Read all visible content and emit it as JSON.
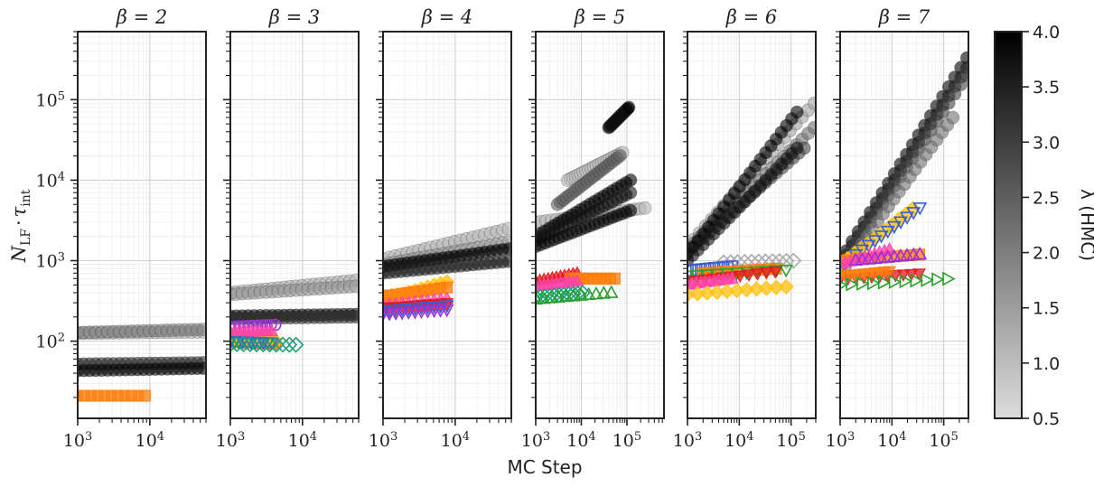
{
  "chart_data": {
    "type": "scatter",
    "layout": "six log-log panels sharing a y-axis, one shared colorbar on the right",
    "xlabel": "MC Step",
    "ylabel_parts": {
      "base": "N",
      "base_sub": "LF",
      "op": "·",
      "tau": "τ",
      "tau_sub": "int"
    },
    "colorbar": {
      "label": "λ (HMC)",
      "range": [
        0.5,
        4.0
      ],
      "ticks": [
        "0.5",
        "1.0",
        "1.5",
        "2.0",
        "2.5",
        "3.0",
        "3.5",
        "4.0"
      ],
      "colors": [
        "#dcdcdc",
        "#000000"
      ]
    },
    "y_axis": {
      "scale": "log",
      "range": [
        11,
        700000
      ],
      "ticks": [
        {
          "exp": 2,
          "base": "10",
          "label": "2"
        },
        {
          "exp": 3,
          "base": "10",
          "label": "3"
        },
        {
          "exp": 4,
          "base": "10",
          "label": "4"
        },
        {
          "exp": 5,
          "base": "10",
          "label": "5"
        }
      ]
    },
    "grid": true,
    "panels": [
      {
        "title": "β = 2",
        "xlim": [
          1000,
          60000
        ],
        "xticks": [
          {
            "exp": 3,
            "label": "3"
          },
          {
            "exp": 4,
            "label": "4"
          }
        ],
        "hmc": [
          {
            "lam": 1.2,
            "x": [
              1000,
              55000
            ],
            "y": [
              125,
              130
            ]
          },
          {
            "lam": 1.9,
            "x": [
              1000,
              55000
            ],
            "y": [
              128,
              140
            ]
          },
          {
            "lam": 3.3,
            "x": [
              1000,
              55000
            ],
            "y": [
              52,
              54
            ]
          },
          {
            "lam": 3.9,
            "x": [
              1000,
              55000
            ],
            "y": [
              43,
              46
            ]
          }
        ],
        "other": [
          {
            "color": "#ff7f0e",
            "marker": "square",
            "filled": true,
            "x": [
              1000,
              9500
            ],
            "y": [
              21,
              21
            ]
          }
        ]
      },
      {
        "title": "β = 3",
        "xlim": [
          1000,
          60000
        ],
        "xticks": [
          {
            "exp": 3,
            "label": "3"
          },
          {
            "exp": 4,
            "label": "4"
          }
        ],
        "hmc": [
          {
            "lam": 1.2,
            "x": [
              1000,
              55000
            ],
            "y": [
              400,
              570
            ]
          },
          {
            "lam": 1.5,
            "x": [
              1000,
              55000
            ],
            "y": [
              380,
              480
            ]
          },
          {
            "lam": 3.9,
            "x": [
              1000,
              55000
            ],
            "y": [
              205,
              215
            ]
          },
          {
            "lam": 3.2,
            "x": [
              1000,
              55000
            ],
            "y": [
              190,
              200
            ]
          }
        ],
        "other": [
          {
            "color": "#9b30d9",
            "marker": "circle",
            "filled": false,
            "x": [
              1000,
              4500
            ],
            "y": [
              150,
              160
            ]
          },
          {
            "color": "#ff7f0e",
            "marker": "square",
            "filled": true,
            "x": [
              1000,
              4500
            ],
            "y": [
              98,
              92
            ]
          },
          {
            "color": "#ffc20e",
            "marker": "diamond",
            "filled": true,
            "x": [
              1000,
              4000
            ],
            "y": [
              110,
              112
            ]
          },
          {
            "color": "#ff44aa",
            "marker": "triangle",
            "filled": true,
            "x": [
              1000,
              4000
            ],
            "y": [
              130,
              132
            ]
          },
          {
            "color": "#3a5fcd",
            "marker": "triangle-down",
            "filled": false,
            "x": [
              1000,
              4000
            ],
            "y": [
              100,
              96
            ]
          },
          {
            "color": "#1a9f7a",
            "marker": "diamond",
            "filled": false,
            "x": [
              1000,
              9000
            ],
            "y": [
              92,
              90
            ]
          }
        ]
      },
      {
        "title": "β = 4",
        "xlim": [
          1000,
          60000
        ],
        "xticks": [
          {
            "exp": 3,
            "label": "3"
          },
          {
            "exp": 4,
            "label": "4"
          }
        ],
        "hmc": [
          {
            "lam": 1.1,
            "x": [
              1000,
              55000
            ],
            "y": [
              1050,
              2500
            ]
          },
          {
            "lam": 1.6,
            "x": [
              1000,
              55000
            ],
            "y": [
              900,
              1700
            ]
          },
          {
            "lam": 4.0,
            "x": [
              1000,
              55000
            ],
            "y": [
              850,
              1400
            ]
          },
          {
            "lam": 3.6,
            "x": [
              1000,
              55000
            ],
            "y": [
              700,
              980
            ]
          }
        ],
        "other": [
          {
            "color": "#ffc20e",
            "marker": "diamond",
            "filled": true,
            "x": [
              1000,
              8500
            ],
            "y": [
              330,
              560
            ]
          },
          {
            "color": "#ff7f0e",
            "marker": "square",
            "filled": true,
            "x": [
              1000,
              8500
            ],
            "y": [
              360,
              470
            ]
          },
          {
            "color": "#ff44aa",
            "marker": "triangle",
            "filled": true,
            "x": [
              1000,
              8500
            ],
            "y": [
              280,
              340
            ]
          },
          {
            "color": "#e31a1c",
            "marker": "triangle-down",
            "filled": true,
            "x": [
              1000,
              8500
            ],
            "y": [
              260,
              300
            ]
          },
          {
            "color": "#3a5fcd",
            "marker": "triangle-down",
            "filled": false,
            "x": [
              1000,
              8500
            ],
            "y": [
              240,
              280
            ]
          },
          {
            "color": "#9b30d9",
            "marker": "triangle-down",
            "filled": false,
            "x": [
              1000,
              8500
            ],
            "y": [
              220,
              250
            ]
          }
        ]
      },
      {
        "title": "β = 5",
        "xlim": [
          1000,
          650000
        ],
        "xticks": [
          {
            "exp": 3,
            "label": "3"
          },
          {
            "exp": 4,
            "label": "4"
          },
          {
            "exp": 5,
            "label": "5"
          }
        ],
        "hmc": [
          {
            "lam": 1.1,
            "x": [
              1000,
              250000
            ],
            "y": [
              3000,
              4500
            ]
          },
          {
            "lam": 1.0,
            "x": [
              5000,
              80000
            ],
            "y": [
              10000,
              22000
            ]
          },
          {
            "lam": 2.5,
            "x": [
              3000,
              70000
            ],
            "y": [
              5000,
              20000
            ]
          },
          {
            "lam": 3.9,
            "x": [
              40000,
              110000
            ],
            "y": [
              45000,
              80000
            ]
          },
          {
            "lam": 4.0,
            "x": [
              1000,
              120000
            ],
            "y": [
              2000,
              10000
            ]
          },
          {
            "lam": 3.7,
            "x": [
              1000,
              120000
            ],
            "y": [
              1800,
              7000
            ]
          },
          {
            "lam": 3.9,
            "x": [
              1000,
              120000
            ],
            "y": [
              1500,
              4200
            ]
          }
        ],
        "other": [
          {
            "color": "#e31a1c",
            "marker": "triangle",
            "filled": true,
            "x": [
              1000,
              9000
            ],
            "y": [
              550,
              700
            ]
          },
          {
            "color": "#ff7f0e",
            "marker": "square",
            "filled": true,
            "x": [
              6000,
              60000
            ],
            "y": [
              600,
              600
            ]
          },
          {
            "color": "#ff44aa",
            "marker": "triangle",
            "filled": true,
            "x": [
              1000,
              9000
            ],
            "y": [
              480,
              560
            ]
          },
          {
            "color": "#1a9f7a",
            "marker": "diamond",
            "filled": false,
            "x": [
              1000,
              12000
            ],
            "y": [
              350,
              400
            ]
          },
          {
            "color": "#2ca02c",
            "marker": "triangle",
            "filled": false,
            "x": [
              1000,
              55000
            ],
            "y": [
              330,
              400
            ]
          }
        ]
      },
      {
        "title": "β = 6",
        "xlim": [
          1000,
          300000
        ],
        "xticks": [
          {
            "exp": 3,
            "label": "3"
          },
          {
            "exp": 4,
            "label": "4"
          },
          {
            "exp": 5,
            "label": "5"
          }
        ],
        "hmc": [
          {
            "lam": 1.4,
            "x": [
              1000,
              280000
            ],
            "y": [
              1500,
              90000
            ]
          },
          {
            "lam": 2.2,
            "x": [
              1000,
              280000
            ],
            "y": [
              1400,
              45000
            ]
          },
          {
            "lam": 3.0,
            "x": [
              1000,
              180000
            ],
            "y": [
              1300,
              25000
            ]
          },
          {
            "lam": 4.0,
            "x": [
              1000,
              130000
            ],
            "y": [
              1200,
              70000
            ]
          },
          {
            "lam": 3.7,
            "x": [
              1000,
              130000
            ],
            "y": [
              1000,
              25000
            ]
          }
        ],
        "other": [
          {
            "color": "#aaaaaa",
            "marker": "diamond",
            "filled": false,
            "x": [
              5000,
              130000
            ],
            "y": [
              950,
              1000
            ]
          },
          {
            "color": "#3a5fcd",
            "marker": "square",
            "filled": false,
            "x": [
              1000,
              8000
            ],
            "y": [
              750,
              850
            ]
          },
          {
            "color": "#ff7f0e",
            "marker": "square",
            "filled": true,
            "x": [
              2000,
              60000
            ],
            "y": [
              700,
              800
            ]
          },
          {
            "color": "#2ca02c",
            "marker": "triangle-down",
            "filled": false,
            "x": [
              1000,
              100000
            ],
            "y": [
              650,
              780
            ]
          },
          {
            "color": "#e31a1c",
            "marker": "triangle-down",
            "filled": true,
            "x": [
              1000,
              60000
            ],
            "y": [
              550,
              750
            ]
          },
          {
            "color": "#ff44aa",
            "marker": "triangle",
            "filled": true,
            "x": [
              1000,
              8000
            ],
            "y": [
              500,
              600
            ]
          },
          {
            "color": "#ffc20e",
            "marker": "diamond",
            "filled": true,
            "x": [
              1000,
              100000
            ],
            "y": [
              380,
              480
            ]
          }
        ]
      },
      {
        "title": "β = 7",
        "xlim": [
          1000,
          300000
        ],
        "xticks": [
          {
            "exp": 3,
            "label": "3"
          },
          {
            "exp": 4,
            "label": "4"
          },
          {
            "exp": 5,
            "label": "5"
          }
        ],
        "hmc": [
          {
            "lam": 4.0,
            "x": [
              1000,
              280000
            ],
            "y": [
              1000,
              330000
            ]
          },
          {
            "lam": 3.6,
            "x": [
              1000,
              280000
            ],
            "y": [
              900,
              250000
            ]
          },
          {
            "lam": 3.0,
            "x": [
              1000,
              280000
            ],
            "y": [
              800,
              200000
            ]
          },
          {
            "lam": 2.2,
            "x": [
              1000,
              150000
            ],
            "y": [
              700,
              60000
            ]
          }
        ],
        "other": [
          {
            "color": "#ffc20e",
            "marker": "diamond",
            "filled": true,
            "x": [
              1000,
              30000
            ],
            "y": [
              900,
              4800
            ]
          },
          {
            "color": "#3a5fcd",
            "marker": "triangle-down",
            "filled": false,
            "x": [
              2000,
              40000
            ],
            "y": [
              1200,
              4900
            ]
          },
          {
            "color": "#ff7f0e",
            "marker": "square",
            "filled": true,
            "x": [
              1000,
              40000
            ],
            "y": [
              1000,
              1200
            ]
          },
          {
            "color": "#ff44aa",
            "marker": "triangle",
            "filled": true,
            "x": [
              1000,
              10000
            ],
            "y": [
              900,
              1400
            ]
          },
          {
            "color": "#9b30d9",
            "marker": "triangle",
            "filled": false,
            "x": [
              2000,
              40000
            ],
            "y": [
              1000,
              1200
            ]
          },
          {
            "color": "#e31a1c",
            "marker": "triangle-down",
            "filled": true,
            "x": [
              1000,
              40000
            ],
            "y": [
              600,
              700
            ]
          },
          {
            "color": "#ff7f0e",
            "marker": "triangle-down",
            "filled": true,
            "x": [
              1000,
              10000
            ],
            "y": [
              650,
              750
            ]
          },
          {
            "color": "#2ca02c",
            "marker": "triangle-right",
            "filled": false,
            "x": [
              1000,
              150000
            ],
            "y": [
              500,
              600
            ]
          }
        ]
      }
    ]
  }
}
